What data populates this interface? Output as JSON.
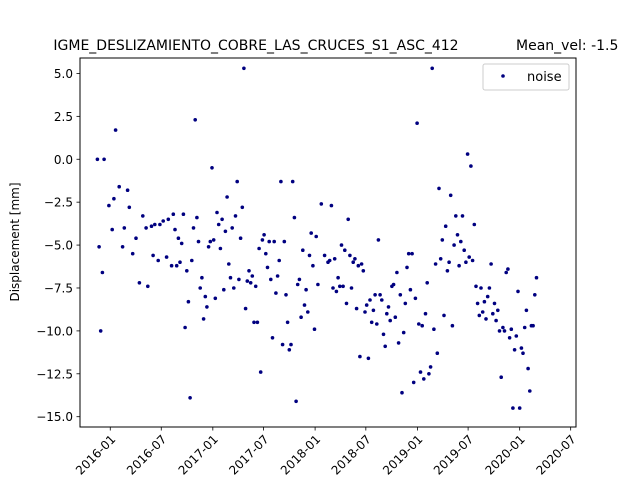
{
  "chart_data": {
    "type": "scatter",
    "title": "IGME_DESLIZAMIENTO_COBRE_LAS_CRUCES_S1_ASC_412",
    "subtitle": "Mean_vel: -1.5",
    "xlabel": "",
    "ylabel": "Displacement [mm]",
    "xlim": [
      "2015-09-15",
      "2020-07-20"
    ],
    "ylim": [
      -15.6,
      5.9
    ],
    "xticks": [
      "2016-01",
      "2016-07",
      "2017-01",
      "2017-07",
      "2018-01",
      "2018-07",
      "2019-01",
      "2019-07",
      "2020-01",
      "2020-07"
    ],
    "yticks": [
      5.0,
      2.5,
      0.0,
      -2.5,
      -5.0,
      -7.5,
      -10.0,
      -12.5,
      -15.0
    ],
    "ytick_labels": [
      "5.0",
      "2.5",
      "0.0",
      "−2.5",
      "−5.0",
      "−7.5",
      "−10.0",
      "−12.5",
      "−15.0"
    ],
    "grid": false,
    "legend_position": "top-right",
    "series": [
      {
        "name": "noise",
        "color": "#000080",
        "points": [
          [
            "2015-11-16",
            0.0
          ],
          [
            "2015-11-22",
            -5.1
          ],
          [
            "2015-11-28",
            -10.0
          ],
          [
            "2015-12-04",
            -6.6
          ],
          [
            "2015-12-10",
            0.0
          ],
          [
            "2015-12-27",
            -2.7
          ],
          [
            "2016-01-08",
            -4.1
          ],
          [
            "2016-01-14",
            -2.3
          ],
          [
            "2016-01-20",
            1.7
          ],
          [
            "2016-02-02",
            -1.6
          ],
          [
            "2016-02-14",
            -5.1
          ],
          [
            "2016-02-20",
            -4.0
          ],
          [
            "2016-03-03",
            -1.8
          ],
          [
            "2016-03-09",
            -2.8
          ],
          [
            "2016-03-21",
            -5.5
          ],
          [
            "2016-04-02",
            -4.6
          ],
          [
            "2016-04-14",
            -7.2
          ],
          [
            "2016-04-26",
            -3.3
          ],
          [
            "2016-05-08",
            -4.0
          ],
          [
            "2016-05-14",
            -7.4
          ],
          [
            "2016-05-27",
            -3.9
          ],
          [
            "2016-06-02",
            -5.6
          ],
          [
            "2016-06-08",
            -3.8
          ],
          [
            "2016-06-20",
            -5.9
          ],
          [
            "2016-06-26",
            -3.8
          ],
          [
            "2016-07-08",
            -3.6
          ],
          [
            "2016-07-20",
            -5.7
          ],
          [
            "2016-07-26",
            -3.5
          ],
          [
            "2016-08-07",
            -6.2
          ],
          [
            "2016-08-13",
            -3.2
          ],
          [
            "2016-08-19",
            -4.1
          ],
          [
            "2016-08-25",
            -6.2
          ],
          [
            "2016-08-31",
            -4.6
          ],
          [
            "2016-09-06",
            -6.0
          ],
          [
            "2016-09-12",
            -4.9
          ],
          [
            "2016-09-18",
            -3.2
          ],
          [
            "2016-09-24",
            -9.8
          ],
          [
            "2016-09-30",
            -6.5
          ],
          [
            "2016-10-06",
            -8.3
          ],
          [
            "2016-10-12",
            -13.9
          ],
          [
            "2016-10-18",
            -5.9
          ],
          [
            "2016-10-24",
            -4.0
          ],
          [
            "2016-10-30",
            2.3
          ],
          [
            "2016-11-05",
            -3.4
          ],
          [
            "2016-11-11",
            -4.8
          ],
          [
            "2016-11-17",
            -7.5
          ],
          [
            "2016-11-23",
            -6.9
          ],
          [
            "2016-11-29",
            -9.3
          ],
          [
            "2016-12-05",
            -8.0
          ],
          [
            "2016-12-11",
            -8.6
          ],
          [
            "2016-12-17",
            -5.1
          ],
          [
            "2016-12-23",
            -4.8
          ],
          [
            "2016-12-29",
            -0.5
          ],
          [
            "2017-01-04",
            -4.7
          ],
          [
            "2017-01-10",
            -8.1
          ],
          [
            "2017-01-16",
            -3.1
          ],
          [
            "2017-01-22",
            -3.8
          ],
          [
            "2017-01-28",
            -5.2
          ],
          [
            "2017-02-03",
            -3.5
          ],
          [
            "2017-02-09",
            -7.6
          ],
          [
            "2017-02-15",
            -4.2
          ],
          [
            "2017-02-21",
            -2.2
          ],
          [
            "2017-02-27",
            -6.1
          ],
          [
            "2017-03-05",
            -6.9
          ],
          [
            "2017-03-11",
            -4.0
          ],
          [
            "2017-03-17",
            -7.5
          ],
          [
            "2017-03-23",
            -3.3
          ],
          [
            "2017-03-29",
            -1.3
          ],
          [
            "2017-04-04",
            -7.0
          ],
          [
            "2017-04-10",
            -4.6
          ],
          [
            "2017-04-16",
            -2.8
          ],
          [
            "2017-04-22",
            5.3
          ],
          [
            "2017-04-28",
            -8.7
          ],
          [
            "2017-05-04",
            -7.1
          ],
          [
            "2017-05-10",
            -6.5
          ],
          [
            "2017-05-16",
            -7.2
          ],
          [
            "2017-05-22",
            -6.8
          ],
          [
            "2017-05-28",
            -9.5
          ],
          [
            "2017-06-03",
            -7.4
          ],
          [
            "2017-06-09",
            -9.5
          ],
          [
            "2017-06-15",
            -5.2
          ],
          [
            "2017-06-21",
            -12.4
          ],
          [
            "2017-06-27",
            -4.7
          ],
          [
            "2017-07-03",
            -4.4
          ],
          [
            "2017-07-09",
            -5.5
          ],
          [
            "2017-07-15",
            -6.3
          ],
          [
            "2017-07-21",
            -4.8
          ],
          [
            "2017-07-27",
            -7.0
          ],
          [
            "2017-08-02",
            -10.4
          ],
          [
            "2017-08-08",
            -4.8
          ],
          [
            "2017-08-14",
            -7.8
          ],
          [
            "2017-08-20",
            -6.8
          ],
          [
            "2017-08-26",
            -5.9
          ],
          [
            "2017-09-01",
            -1.3
          ],
          [
            "2017-09-07",
            -10.8
          ],
          [
            "2017-09-13",
            -4.8
          ],
          [
            "2017-09-19",
            -7.9
          ],
          [
            "2017-09-25",
            -9.5
          ],
          [
            "2017-10-01",
            -11.1
          ],
          [
            "2017-10-07",
            -10.8
          ],
          [
            "2017-10-13",
            -1.3
          ],
          [
            "2017-10-19",
            -3.4
          ],
          [
            "2017-10-25",
            -14.1
          ],
          [
            "2017-10-31",
            -7.3
          ],
          [
            "2017-11-06",
            -7.0
          ],
          [
            "2017-11-12",
            -9.2
          ],
          [
            "2017-11-18",
            -5.3
          ],
          [
            "2017-11-24",
            -8.5
          ],
          [
            "2017-11-30",
            -7.6
          ],
          [
            "2017-12-06",
            -8.9
          ],
          [
            "2017-12-12",
            -5.6
          ],
          [
            "2017-12-18",
            -4.3
          ],
          [
            "2017-12-24",
            -6.2
          ],
          [
            "2017-12-30",
            -9.9
          ],
          [
            "2018-01-05",
            -4.5
          ],
          [
            "2018-01-11",
            -7.3
          ],
          [
            "2018-01-23",
            -2.6
          ],
          [
            "2018-02-04",
            -5.6
          ],
          [
            "2018-02-16",
            -6.0
          ],
          [
            "2018-02-22",
            -5.9
          ],
          [
            "2018-02-28",
            -2.7
          ],
          [
            "2018-03-06",
            -7.5
          ],
          [
            "2018-03-12",
            -5.8
          ],
          [
            "2018-03-18",
            -7.7
          ],
          [
            "2018-03-24",
            -6.9
          ],
          [
            "2018-03-30",
            -7.4
          ],
          [
            "2018-04-05",
            -5.0
          ],
          [
            "2018-04-11",
            -7.4
          ],
          [
            "2018-04-17",
            -5.3
          ],
          [
            "2018-04-23",
            -8.4
          ],
          [
            "2018-04-29",
            -3.5
          ],
          [
            "2018-05-05",
            -5.6
          ],
          [
            "2018-05-11",
            -7.5
          ],
          [
            "2018-05-17",
            -6.0
          ],
          [
            "2018-05-23",
            -5.8
          ],
          [
            "2018-05-29",
            -8.7
          ],
          [
            "2018-06-04",
            -6.2
          ],
          [
            "2018-06-10",
            -11.5
          ],
          [
            "2018-06-16",
            -6.1
          ],
          [
            "2018-06-22",
            -6.5
          ],
          [
            "2018-06-28",
            -8.9
          ],
          [
            "2018-07-04",
            -8.5
          ],
          [
            "2018-07-10",
            -11.6
          ],
          [
            "2018-07-16",
            -8.2
          ],
          [
            "2018-07-22",
            -9.5
          ],
          [
            "2018-07-28",
            -8.8
          ],
          [
            "2018-08-03",
            -7.9
          ],
          [
            "2018-08-09",
            -9.6
          ],
          [
            "2018-08-15",
            -4.7
          ],
          [
            "2018-08-21",
            -7.9
          ],
          [
            "2018-08-27",
            -8.2
          ],
          [
            "2018-09-02",
            -10.2
          ],
          [
            "2018-09-08",
            -10.9
          ],
          [
            "2018-09-14",
            -9.0
          ],
          [
            "2018-09-20",
            -8.6
          ],
          [
            "2018-09-26",
            -9.4
          ],
          [
            "2018-10-02",
            -7.4
          ],
          [
            "2018-10-08",
            -7.3
          ],
          [
            "2018-10-14",
            -9.2
          ],
          [
            "2018-10-20",
            -6.6
          ],
          [
            "2018-10-26",
            -10.7
          ],
          [
            "2018-11-01",
            -7.9
          ],
          [
            "2018-11-07",
            -13.6
          ],
          [
            "2018-11-13",
            -10.1
          ],
          [
            "2018-11-19",
            -8.4
          ],
          [
            "2018-11-25",
            -6.3
          ],
          [
            "2018-12-01",
            -5.5
          ],
          [
            "2018-12-07",
            -7.6
          ],
          [
            "2018-12-13",
            -5.5
          ],
          [
            "2018-12-19",
            -13.0
          ],
          [
            "2018-12-25",
            -8.1
          ],
          [
            "2018-12-31",
            2.1
          ],
          [
            "2019-01-06",
            -9.6
          ],
          [
            "2019-01-12",
            -12.4
          ],
          [
            "2019-01-18",
            -9.7
          ],
          [
            "2019-01-24",
            -12.8
          ],
          [
            "2019-01-30",
            -9.0
          ],
          [
            "2019-02-05",
            -7.2
          ],
          [
            "2019-02-11",
            -12.5
          ],
          [
            "2019-02-17",
            -12.1
          ],
          [
            "2019-02-23",
            5.3
          ],
          [
            "2019-03-01",
            -9.9
          ],
          [
            "2019-03-07",
            -6.1
          ],
          [
            "2019-03-13",
            -11.3
          ],
          [
            "2019-03-19",
            -1.7
          ],
          [
            "2019-03-25",
            -5.8
          ],
          [
            "2019-03-31",
            -4.7
          ],
          [
            "2019-04-06",
            -9.1
          ],
          [
            "2019-04-12",
            -3.9
          ],
          [
            "2019-04-18",
            -6.5
          ],
          [
            "2019-04-24",
            -6.0
          ],
          [
            "2019-04-30",
            -2.1
          ],
          [
            "2019-05-06",
            -9.7
          ],
          [
            "2019-05-12",
            -5.0
          ],
          [
            "2019-05-18",
            -3.3
          ],
          [
            "2019-05-24",
            -4.4
          ],
          [
            "2019-05-30",
            -6.2
          ],
          [
            "2019-06-05",
            -4.8
          ],
          [
            "2019-06-11",
            -3.3
          ],
          [
            "2019-06-17",
            -5.3
          ],
          [
            "2019-06-23",
            -6.0
          ],
          [
            "2019-06-29",
            0.3
          ],
          [
            "2019-07-05",
            -5.7
          ],
          [
            "2019-07-11",
            -0.4
          ],
          [
            "2019-07-17",
            -5.9
          ],
          [
            "2019-07-23",
            -3.8
          ],
          [
            "2019-07-29",
            -7.4
          ],
          [
            "2019-08-04",
            -8.4
          ],
          [
            "2019-08-10",
            -9.1
          ],
          [
            "2019-08-16",
            -7.5
          ],
          [
            "2019-08-22",
            -8.9
          ],
          [
            "2019-08-28",
            -8.3
          ],
          [
            "2019-09-03",
            -9.3
          ],
          [
            "2019-09-09",
            -8.0
          ],
          [
            "2019-09-15",
            -7.5
          ],
          [
            "2019-09-21",
            -6.1
          ],
          [
            "2019-09-27",
            -9.0
          ],
          [
            "2019-10-03",
            -8.4
          ],
          [
            "2019-10-09",
            -9.4
          ],
          [
            "2019-10-15",
            -8.8
          ],
          [
            "2019-10-21",
            -10.0
          ],
          [
            "2019-10-27",
            -12.7
          ],
          [
            "2019-11-02",
            -9.8
          ],
          [
            "2019-11-08",
            -10.0
          ],
          [
            "2019-11-14",
            -6.6
          ],
          [
            "2019-11-20",
            -6.4
          ],
          [
            "2019-11-26",
            -10.4
          ],
          [
            "2019-12-02",
            -9.9
          ],
          [
            "2019-12-08",
            -14.5
          ],
          [
            "2019-12-14",
            -11.1
          ],
          [
            "2019-12-20",
            -10.3
          ],
          [
            "2019-12-26",
            -7.7
          ],
          [
            "2020-01-01",
            -14.5
          ],
          [
            "2020-01-07",
            -11.0
          ],
          [
            "2020-01-13",
            -11.3
          ],
          [
            "2020-01-19",
            -9.8
          ],
          [
            "2020-01-25",
            -8.8
          ],
          [
            "2020-01-31",
            -12.2
          ],
          [
            "2020-02-06",
            -13.5
          ],
          [
            "2020-02-12",
            -9.7
          ],
          [
            "2020-02-18",
            -9.7
          ],
          [
            "2020-02-24",
            -7.9
          ],
          [
            "2020-03-01",
            -6.9
          ]
        ]
      }
    ]
  }
}
